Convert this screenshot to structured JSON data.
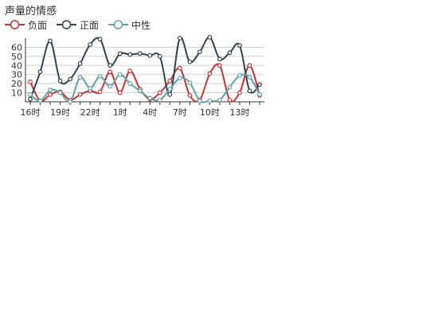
{
  "chart_data": {
    "type": "line",
    "title": "声量的情感",
    "x": [
      "16时",
      "17时",
      "18时",
      "19时",
      "20时",
      "21时",
      "22时",
      "23时",
      "0时",
      "1时",
      "2时",
      "3时",
      "4时",
      "5时",
      "6时",
      "7时",
      "8时",
      "9时",
      "10时",
      "11时",
      "12时",
      "13时",
      "14时",
      "15时"
    ],
    "x_ticks_shown": [
      "16时",
      "19时",
      "22时",
      "1时",
      "4时",
      "7时",
      "10时",
      "13时"
    ],
    "y_ticks": [
      10,
      20,
      30,
      40,
      50,
      60
    ],
    "ylim": [
      0,
      70
    ],
    "grid": true,
    "legend_position": "top-left",
    "series": [
      {
        "name": "负面",
        "color": "#c23531",
        "values": [
          22,
          1,
          8,
          11,
          2,
          8,
          12,
          11,
          33,
          10,
          34,
          14,
          3,
          10,
          23,
          37,
          7,
          2,
          31,
          40,
          2,
          10,
          40,
          7
        ]
      },
      {
        "name": "正面",
        "color": "#2f4554",
        "values": [
          3,
          33,
          67,
          23,
          25,
          42,
          63,
          69,
          40,
          53,
          52,
          53,
          51,
          50,
          8,
          70,
          44,
          55,
          71,
          47,
          54,
          62,
          12,
          19
        ]
      },
      {
        "name": "中性",
        "color": "#61a0a8",
        "values": [
          8,
          1,
          13,
          10,
          0,
          27,
          15,
          28,
          17,
          30,
          20,
          12,
          4,
          2,
          14,
          26,
          21,
          1,
          1,
          2,
          16,
          29,
          27,
          8
        ]
      }
    ]
  }
}
